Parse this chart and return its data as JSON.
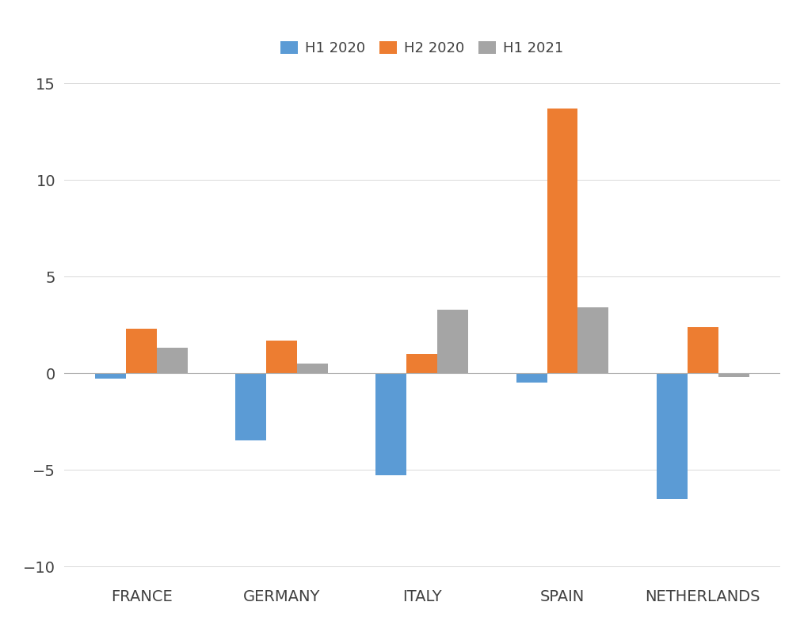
{
  "categories": [
    "FRANCE",
    "GERMANY",
    "ITALY",
    "SPAIN",
    "NETHERLANDS"
  ],
  "series": {
    "H1 2020": [
      -0.3,
      -3.5,
      -5.3,
      -0.5,
      -6.5
    ],
    "H2 2020": [
      2.3,
      1.7,
      1.0,
      13.7,
      2.4
    ],
    "H1 2021": [
      1.3,
      0.5,
      3.3,
      3.4,
      -0.2
    ]
  },
  "colors": {
    "H1 2020": "#5B9BD5",
    "H2 2020": "#ED7D31",
    "H1 2021": "#A5A5A5"
  },
  "ylim": [
    -10.5,
    16
  ],
  "yticks": [
    -10,
    -5,
    0,
    5,
    10,
    15
  ],
  "bar_width": 0.22,
  "legend_labels": [
    "H1 2020",
    "H2 2020",
    "H1 2021"
  ],
  "background_color": "#ffffff",
  "grid_color": "#d9d9d9",
  "tick_fontsize": 14,
  "legend_fontsize": 13,
  "tick_color": "#404040",
  "font_family": "Arial"
}
